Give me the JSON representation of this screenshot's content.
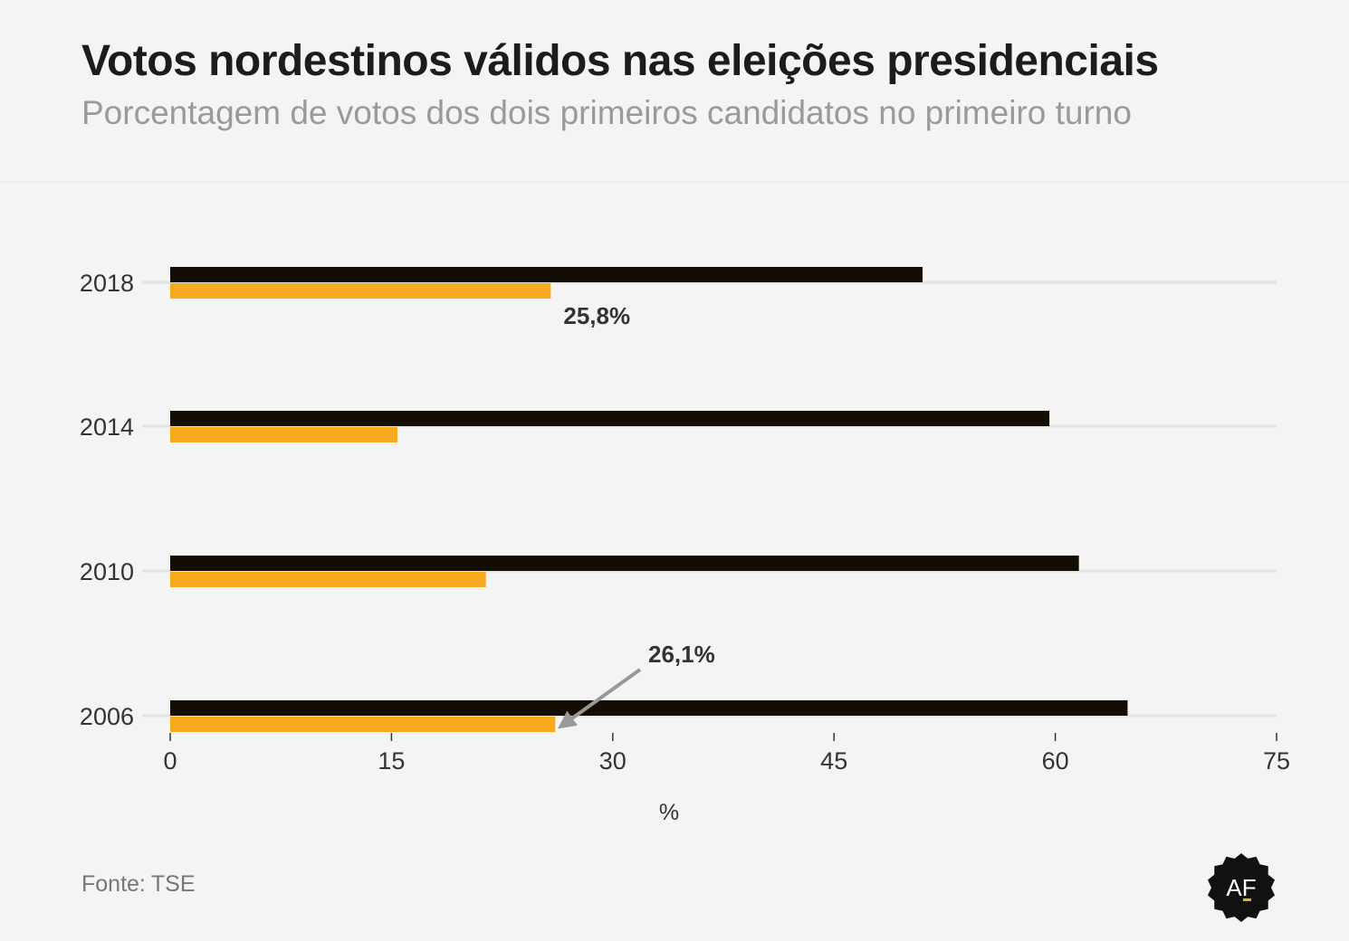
{
  "header": {
    "title": "Votos nordestinos válidos nas eleições presidenciais",
    "subtitle": "Porcentagem de votos dos dois primeiros candidatos no primeiro turno"
  },
  "footer": {
    "source_label": "Fonte:",
    "source_value": "TSE",
    "logo_text": "AF"
  },
  "colors": {
    "first": "#140d03",
    "second": "#f6a81e",
    "gridline": "#e2e2e2",
    "text": "#333333"
  },
  "chart_data": {
    "type": "bar",
    "orientation": "horizontal",
    "categories": [
      "2018",
      "2014",
      "2010",
      "2006"
    ],
    "series": [
      {
        "values": [
          51.0,
          59.6,
          61.6,
          64.9
        ]
      },
      {
        "values": [
          25.8,
          15.4,
          21.4,
          26.1
        ]
      }
    ],
    "xlabel": "%",
    "xlim": [
      0,
      75
    ],
    "xticks": [
      0,
      15,
      30,
      45,
      60,
      75
    ],
    "xtick_labels": [
      "0",
      "15",
      "30",
      "45",
      "60",
      "75"
    ],
    "annotations": [
      {
        "category": "2018",
        "series": 1,
        "text": "25,8%"
      },
      {
        "category": "2006",
        "series": 1,
        "text": "26,1%",
        "arrow": true
      }
    ]
  }
}
